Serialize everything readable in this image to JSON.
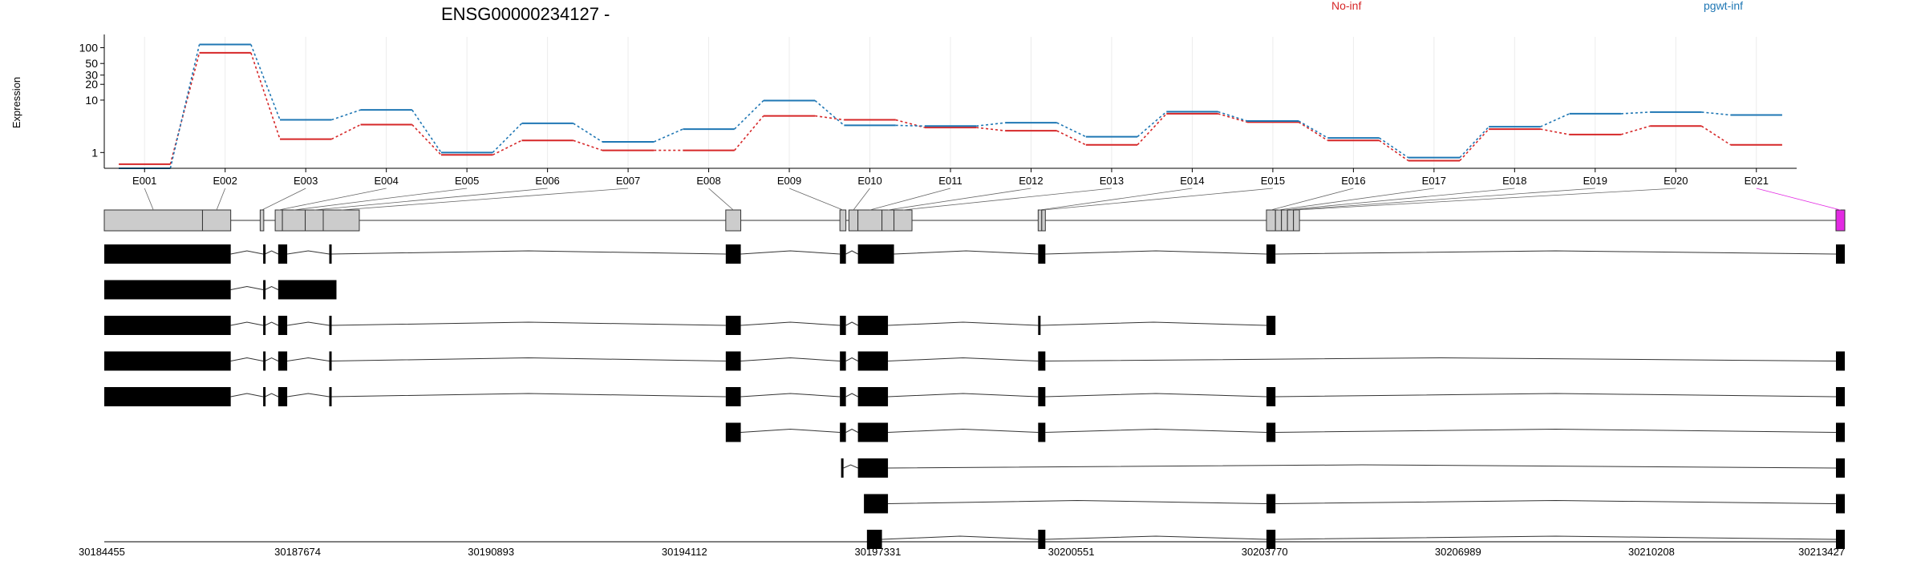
{
  "chart_data": {
    "type": "line",
    "title": "ENSG00000234127 -",
    "ylabel": "Expression",
    "yscale": "log",
    "ylim": [
      0.5,
      150
    ],
    "yticks": [
      1,
      10,
      20,
      30,
      50,
      100
    ],
    "ytick_labels": [
      "1",
      "10",
      "20",
      "30",
      "50",
      "100"
    ],
    "legend_placement": "top",
    "categories": [
      "E001",
      "E002",
      "E003",
      "E004",
      "E005",
      "E006",
      "E007",
      "E008",
      "E009",
      "E010",
      "E011",
      "E012",
      "E013",
      "E014",
      "E015",
      "E016",
      "E017",
      "E018",
      "E019",
      "E020",
      "E021"
    ],
    "series": [
      {
        "name": "No-inf",
        "color": "#d62728",
        "values": [
          0.6,
          80,
          1.8,
          3.4,
          0.9,
          1.7,
          1.1,
          1.1,
          5.0,
          4.2,
          3.0,
          2.6,
          1.4,
          5.5,
          3.8,
          1.7,
          0.7,
          2.8,
          2.2,
          3.2,
          1.4
        ]
      },
      {
        "name": "pgwt-inf",
        "color": "#1f77b4",
        "values": [
          0.5,
          115,
          4.2,
          6.5,
          1.0,
          3.6,
          1.6,
          2.8,
          9.8,
          3.3,
          3.2,
          3.7,
          2.0,
          6.0,
          4.0,
          1.9,
          0.8,
          3.1,
          5.5,
          5.9,
          5.2
        ]
      }
    ],
    "gene_model": {
      "exon_ids": [
        "E001",
        "E002",
        "E003",
        "E004",
        "E005",
        "E006",
        "E007",
        "E008",
        "E009",
        "E010",
        "E011",
        "E012",
        "E013",
        "E014",
        "E015",
        "E016",
        "E017",
        "E018",
        "E019",
        "E020",
        "E021"
      ],
      "coordinate_ticks": [
        30184455,
        30187674,
        30190893,
        30194112,
        30197331,
        30200551,
        30203770,
        30206989,
        30210208,
        30213427
      ],
      "coordinate_labels": [
        "30184455",
        "30187674",
        "30190893",
        "30194112",
        "30197331",
        "30200551",
        "30203770",
        "30206989",
        "30210208",
        "30213427"
      ],
      "highlight_color": "#e32ae3",
      "exon_bins": [
        [
          30184455,
          30186090
        ],
        [
          30186090,
          30186560
        ],
        [
          30187050,
          30187110
        ],
        [
          30187300,
          30187420
        ],
        [
          30187420,
          30187800
        ],
        [
          30187800,
          30188100
        ],
        [
          30188100,
          30188700
        ],
        [
          30194800,
          30195050
        ],
        [
          30196700,
          30196800
        ],
        [
          30196850,
          30197000
        ],
        [
          30197000,
          30197400
        ],
        [
          30197400,
          30197600
        ],
        [
          30197600,
          30197900
        ],
        [
          30200000,
          30200060
        ],
        [
          30200060,
          30200120
        ],
        [
          30203800,
          30203950
        ],
        [
          30203950,
          30204050
        ],
        [
          30204050,
          30204150
        ],
        [
          30204150,
          30204250
        ],
        [
          30204250,
          30204350
        ],
        [
          30213280,
          30213427
        ]
      ],
      "transcripts": [
        [
          [
            30184455,
            30186560
          ],
          [
            30187100,
            30187130
          ],
          [
            30187350,
            30187500
          ],
          [
            30188200,
            30188230
          ],
          [
            30194800,
            30195050
          ],
          [
            30196700,
            30196800
          ],
          [
            30197000,
            30197600
          ],
          [
            30200000,
            30200120
          ],
          [
            30203800,
            30203950
          ],
          [
            30213280,
            30213427
          ]
        ],
        [
          [
            30184455,
            30186560
          ],
          [
            30187100,
            30187130
          ],
          [
            30187350,
            30188320
          ]
        ],
        [
          [
            30184455,
            30186560
          ],
          [
            30187100,
            30187130
          ],
          [
            30187350,
            30187500
          ],
          [
            30188200,
            30188230
          ],
          [
            30194800,
            30195050
          ],
          [
            30196700,
            30196800
          ],
          [
            30197000,
            30197500
          ],
          [
            30200000,
            30200040
          ],
          [
            30203800,
            30203950
          ]
        ],
        [
          [
            30184455,
            30186560
          ],
          [
            30187100,
            30187130
          ],
          [
            30187350,
            30187500
          ],
          [
            30188200,
            30188230
          ],
          [
            30194800,
            30195050
          ],
          [
            30196700,
            30196800
          ],
          [
            30197000,
            30197500
          ],
          [
            30200000,
            30200120
          ],
          [
            30213280,
            30213427
          ]
        ],
        [
          [
            30184455,
            30186560
          ],
          [
            30187100,
            30187130
          ],
          [
            30187350,
            30187500
          ],
          [
            30188200,
            30188230
          ],
          [
            30194800,
            30195050
          ],
          [
            30196700,
            30196800
          ],
          [
            30197000,
            30197500
          ],
          [
            30200000,
            30200120
          ],
          [
            30203800,
            30203950
          ],
          [
            30213280,
            30213427
          ]
        ],
        [
          [
            30194800,
            30195050
          ],
          [
            30196700,
            30196800
          ],
          [
            30197000,
            30197500
          ],
          [
            30200000,
            30200120
          ],
          [
            30203800,
            30203950
          ],
          [
            30213280,
            30213427
          ]
        ],
        [
          [
            30196720,
            30196760
          ],
          [
            30197000,
            30197500
          ],
          [
            30213280,
            30213427
          ]
        ],
        [
          [
            30197100,
            30197500
          ],
          [
            30203800,
            30203950
          ],
          [
            30213280,
            30213427
          ]
        ],
        [
          [
            30197150,
            30197400
          ],
          [
            30200000,
            30200120
          ],
          [
            30203800,
            30203950
          ],
          [
            30213280,
            30213427
          ]
        ]
      ]
    }
  }
}
